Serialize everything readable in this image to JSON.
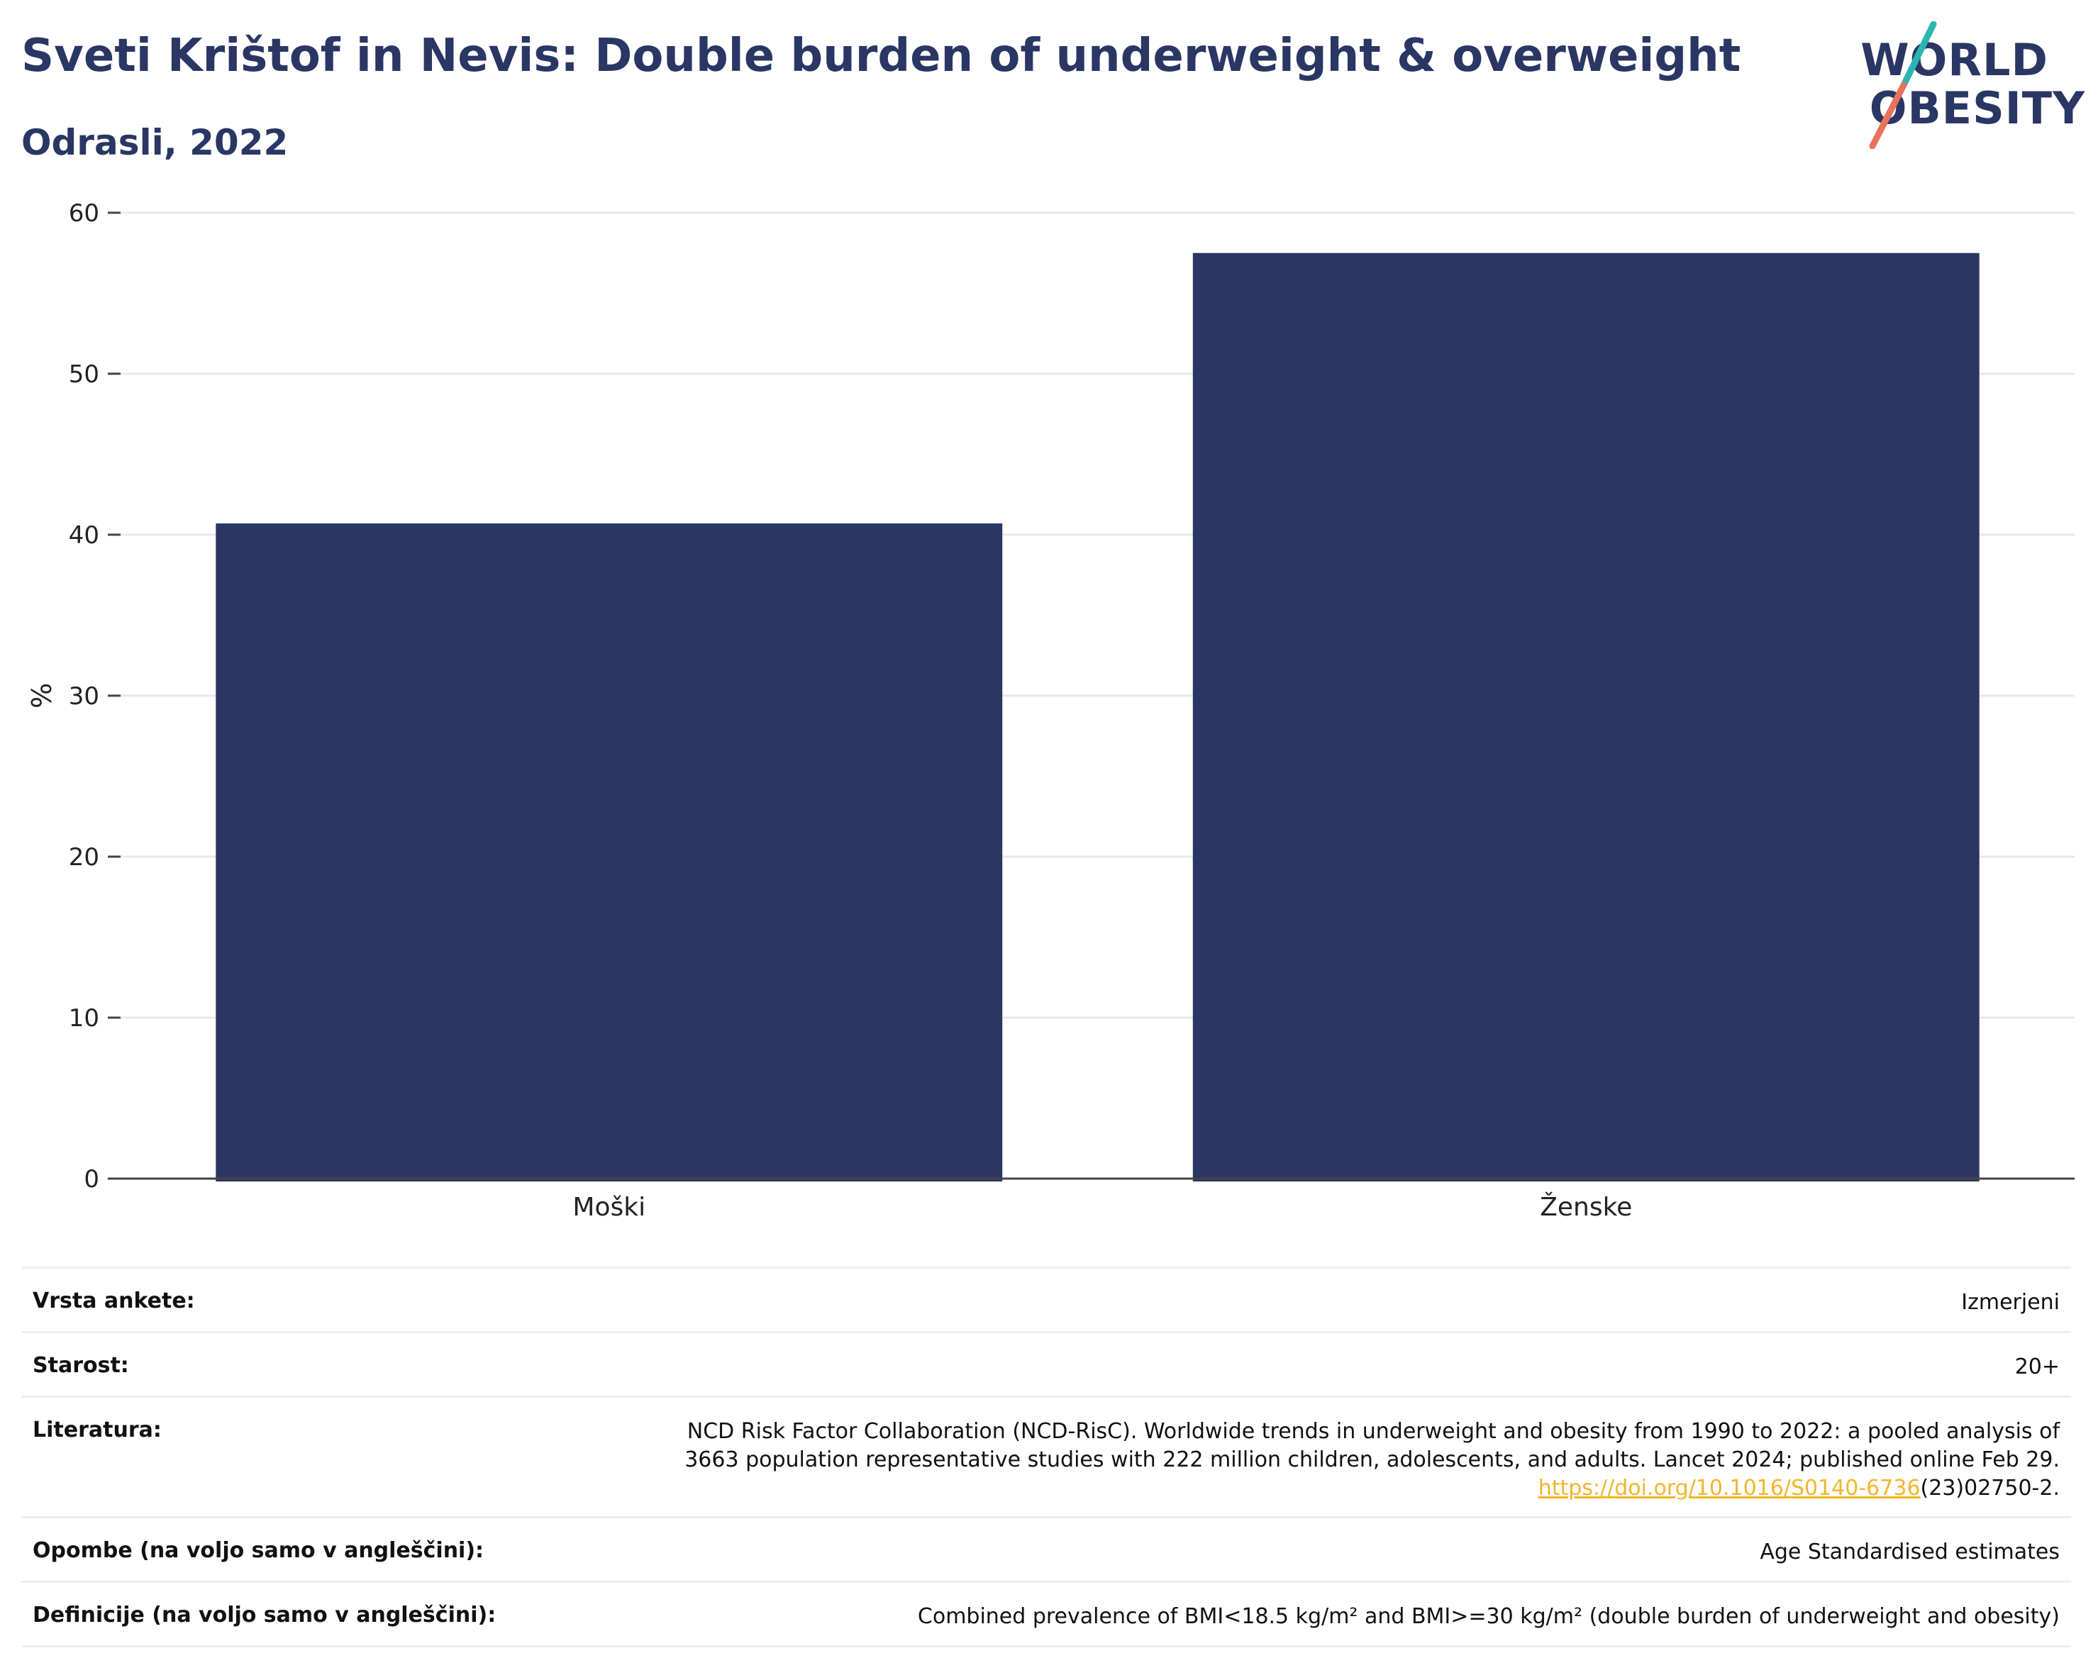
{
  "header": {
    "title": "Sveti Krištof in Nevis: Double burden of underweight & overweight",
    "subtitle": "Odrasli, 2022"
  },
  "logo": {
    "line1": "WORLD",
    "line2": "OBESITY",
    "colors": {
      "text": "#2a3663",
      "slash_top": "#2ab5b0",
      "slash_bottom": "#e8735a"
    }
  },
  "chart_data": {
    "type": "bar",
    "categories": [
      "Moški",
      "Ženske"
    ],
    "values": [
      40.7,
      57.5
    ],
    "ylabel": "%",
    "xlabel": "",
    "ylim": [
      0,
      60
    ],
    "yticks": [
      0,
      10,
      20,
      30,
      40,
      50,
      60
    ],
    "grid": true,
    "bar_color": "#2a3663"
  },
  "meta": {
    "rows": [
      {
        "key": "Vrsta ankete:",
        "value": "Izmerjeni"
      },
      {
        "key": "Starost:",
        "value": "20+"
      },
      {
        "key": "Literatura:",
        "value_lines": [
          "NCD Risk Factor Collaboration (NCD-RisC). Worldwide trends in underweight and obesity from 1990 to 2022: a pooled analysis of",
          "3663 population representative studies with 222 million children, adolescents, and adults. Lancet 2024; published online Feb 29."
        ],
        "link_text": "https://doi.org/10.1016/S0140-6736",
        "link_suffix": "(23)02750-2."
      },
      {
        "key": "Opombe (na voljo samo v angleščini):",
        "value": "Age Standardised estimates"
      },
      {
        "key": "Definicije (na voljo samo v angleščini):",
        "value": "Combined prevalence of BMI<18.5 kg/m² and BMI>=30 kg/m² (double burden of underweight and obesity)"
      }
    ]
  }
}
